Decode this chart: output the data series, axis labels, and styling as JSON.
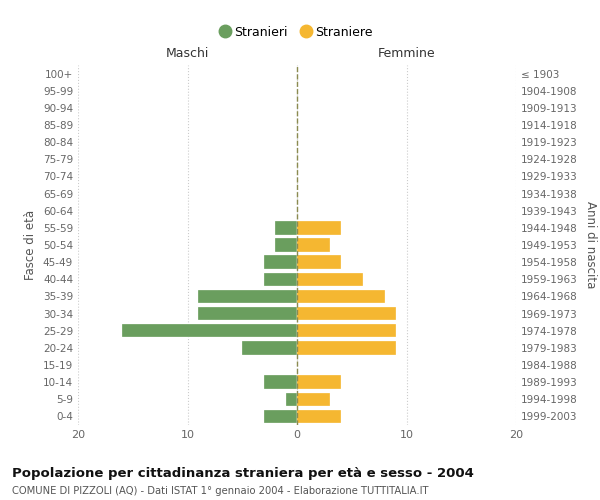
{
  "age_groups": [
    "0-4",
    "5-9",
    "10-14",
    "15-19",
    "20-24",
    "25-29",
    "30-34",
    "35-39",
    "40-44",
    "45-49",
    "50-54",
    "55-59",
    "60-64",
    "65-69",
    "70-74",
    "75-79",
    "80-84",
    "85-89",
    "90-94",
    "95-99",
    "100+"
  ],
  "birth_years": [
    "1999-2003",
    "1994-1998",
    "1989-1993",
    "1984-1988",
    "1979-1983",
    "1974-1978",
    "1969-1973",
    "1964-1968",
    "1959-1963",
    "1954-1958",
    "1949-1953",
    "1944-1948",
    "1939-1943",
    "1934-1938",
    "1929-1933",
    "1924-1928",
    "1919-1923",
    "1914-1918",
    "1909-1913",
    "1904-1908",
    "≤ 1903"
  ],
  "males": [
    3,
    1,
    3,
    0,
    5,
    16,
    9,
    9,
    3,
    3,
    2,
    2,
    0,
    0,
    0,
    0,
    0,
    0,
    0,
    0,
    0
  ],
  "females": [
    4,
    3,
    4,
    0,
    9,
    9,
    9,
    8,
    6,
    4,
    3,
    4,
    0,
    0,
    0,
    0,
    0,
    0,
    0,
    0,
    0
  ],
  "male_color": "#6a9e5e",
  "female_color": "#f5b731",
  "center_line_color": "#8b8b50",
  "grid_color": "#cccccc",
  "title": "Popolazione per cittadinanza straniera per età e sesso - 2004",
  "subtitle": "COMUNE DI PIZZOLI (AQ) - Dati ISTAT 1° gennaio 2004 - Elaborazione TUTTITALIA.IT",
  "xlabel_left": "Maschi",
  "xlabel_right": "Femmine",
  "ylabel_left": "Fasce di età",
  "ylabel_right": "Anni di nascita",
  "legend_male": "Stranieri",
  "legend_female": "Straniere",
  "xlim": 20,
  "background_color": "#ffffff"
}
